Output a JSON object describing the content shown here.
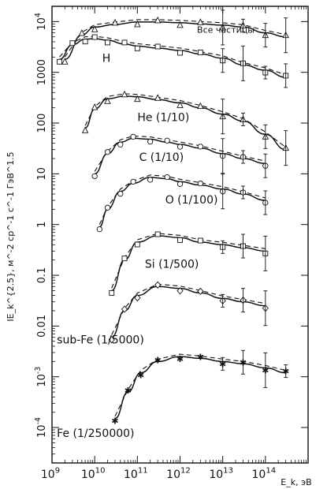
{
  "chart_data": {
    "type": "scatter",
    "title": "",
    "xlabel": "E_k, эВ",
    "ylabel": "IE_k^{2.5}, м^-2 ср^-1 с^-1 ГэВ^1.5",
    "x_log": true,
    "y_log": true,
    "xlim": [
      1000000000.0,
      1000000000000000.0
    ],
    "ylim": [
      2e-05,
      20000
    ],
    "x_ticks": [
      {
        "value": 1000000000.0,
        "label": "10^9"
      },
      {
        "value": 10000000000.0,
        "label": "10^10"
      },
      {
        "value": 100000000000.0,
        "label": "10^11"
      },
      {
        "value": 1000000000000.0,
        "label": "10^12"
      },
      {
        "value": 10000000000000.0,
        "label": "10^13"
      },
      {
        "value": 100000000000000.0,
        "label": "10^14"
      }
    ],
    "y_ticks": [
      {
        "value": 0.0001,
        "label": "10^-4"
      },
      {
        "value": 0.001,
        "label": "10^-3"
      },
      {
        "value": 0.01,
        "label": "0.01"
      },
      {
        "value": 0.1,
        "label": "0.1"
      },
      {
        "value": 1,
        "label": "1"
      },
      {
        "value": 10,
        "label": "10"
      },
      {
        "value": 100,
        "label": "100"
      },
      {
        "value": 1000,
        "label": "1000"
      },
      {
        "value": 10000,
        "label": "10^4"
      }
    ],
    "grid": false,
    "series": [
      {
        "name": "Все частицы",
        "label_at": [
          2500000000000.0,
          6000
        ],
        "marker": "triangle",
        "points": [
          [
            2000000000.0,
            1800
          ],
          [
            5000000000.0,
            5500
          ],
          [
            10000000000.0,
            7800
          ],
          [
            30000000000.0,
            8800
          ],
          [
            100000000000.0,
            9800
          ],
          [
            300000000000.0,
            9800
          ],
          [
            1000000000000.0,
            9500
          ],
          [
            3000000000000.0,
            9000
          ],
          [
            10000000000000.0,
            8500
          ],
          [
            30000000000000.0,
            7800
          ],
          [
            100000000000000.0,
            6000
          ],
          [
            300000000000000.0,
            5000
          ]
        ]
      },
      {
        "name": "H",
        "label_at": [
          15000000000.0,
          1600
        ],
        "marker": "square",
        "points": [
          [
            1500000000.0,
            1800
          ],
          [
            3000000000.0,
            3500
          ],
          [
            6000000000.0,
            4500
          ],
          [
            10000000000.0,
            4600
          ],
          [
            20000000000.0,
            4300
          ],
          [
            50000000000.0,
            3600
          ],
          [
            100000000000.0,
            3300
          ],
          [
            300000000000.0,
            3000
          ],
          [
            1000000000000.0,
            2700
          ],
          [
            3000000000000.0,
            2300
          ],
          [
            10000000000000.0,
            1900
          ],
          [
            30000000000000.0,
            1400
          ],
          [
            100000000000000.0,
            1100
          ],
          [
            300000000000000.0,
            800
          ]
        ]
      },
      {
        "name": "He (1/10)",
        "label_at": [
          100000000000.0,
          110
        ],
        "marker": "triangle",
        "points": [
          [
            6000000000.0,
            80
          ],
          [
            10000000000.0,
            190
          ],
          [
            20000000000.0,
            300
          ],
          [
            50000000000.0,
            340
          ],
          [
            100000000000.0,
            330
          ],
          [
            300000000000.0,
            290
          ],
          [
            1000000000000.0,
            250
          ],
          [
            3000000000000.0,
            200
          ],
          [
            10000000000000.0,
            150
          ],
          [
            30000000000000.0,
            110
          ],
          [
            100000000000000.0,
            60
          ],
          [
            300000000000000.0,
            30
          ]
        ]
      },
      {
        "name": "C (1/10)",
        "label_at": [
          110000000000.0,
          18
        ],
        "marker": "circle",
        "points": [
          [
            10000000000.0,
            10
          ],
          [
            20000000000.0,
            25
          ],
          [
            40000000000.0,
            42
          ],
          [
            80000000000.0,
            50
          ],
          [
            200000000000.0,
            48
          ],
          [
            500000000000.0,
            42
          ],
          [
            1000000000000.0,
            38
          ],
          [
            3000000000000.0,
            32
          ],
          [
            10000000000000.0,
            25
          ],
          [
            30000000000000.0,
            20
          ],
          [
            100000000000000.0,
            16
          ]
        ]
      },
      {
        "name": "O (1/100)",
        "label_at": [
          450000000000.0,
          2.6
        ],
        "marker": "circle",
        "points": [
          [
            13000000000.0,
            0.9
          ],
          [
            20000000000.0,
            2
          ],
          [
            40000000000.0,
            4.5
          ],
          [
            80000000000.0,
            6.5
          ],
          [
            200000000000.0,
            8.5
          ],
          [
            500000000000.0,
            8
          ],
          [
            1000000000000.0,
            7
          ],
          [
            3000000000000.0,
            6
          ],
          [
            10000000000000.0,
            5
          ],
          [
            30000000000000.0,
            4
          ],
          [
            100000000000000.0,
            3
          ]
        ]
      },
      {
        "name": "Si (1/500)",
        "label_at": [
          150000000000.0,
          0.14
        ],
        "marker": "square",
        "points": [
          [
            25000000000.0,
            0.05
          ],
          [
            50000000000.0,
            0.2
          ],
          [
            100000000000.0,
            0.45
          ],
          [
            300000000000.0,
            0.6
          ],
          [
            1000000000000.0,
            0.55
          ],
          [
            3000000000000.0,
            0.45
          ],
          [
            10000000000000.0,
            0.4
          ],
          [
            30000000000000.0,
            0.35
          ],
          [
            100000000000000.0,
            0.3
          ]
        ]
      },
      {
        "name": "sub-Fe (1/5000)",
        "label_at": [
          1300000000.0,
          0.0045
        ],
        "marker": "diamond",
        "points": [
          [
            25000000000.0,
            0.006
          ],
          [
            50000000000.0,
            0.02
          ],
          [
            100000000000.0,
            0.04
          ],
          [
            300000000000.0,
            0.06
          ],
          [
            1000000000000.0,
            0.055
          ],
          [
            3000000000000.0,
            0.045
          ],
          [
            10000000000000.0,
            0.035
          ],
          [
            30000000000000.0,
            0.03
          ],
          [
            100000000000000.0,
            0.025
          ]
        ]
      },
      {
        "name": "Fe (1/250000)",
        "label_at": [
          1300000000.0,
          6.5e-05
        ],
        "marker": "star",
        "points": [
          [
            30000000000.0,
            0.00015
          ],
          [
            60000000000.0,
            0.0005
          ],
          [
            120000000000.0,
            0.0012
          ],
          [
            300000000000.0,
            0.002
          ],
          [
            1000000000000.0,
            0.0025
          ],
          [
            3000000000000.0,
            0.0023
          ],
          [
            10000000000000.0,
            0.002
          ],
          [
            30000000000000.0,
            0.0018
          ],
          [
            100000000000000.0,
            0.0015
          ],
          [
            300000000000000.0,
            0.0012
          ]
        ]
      }
    ]
  }
}
